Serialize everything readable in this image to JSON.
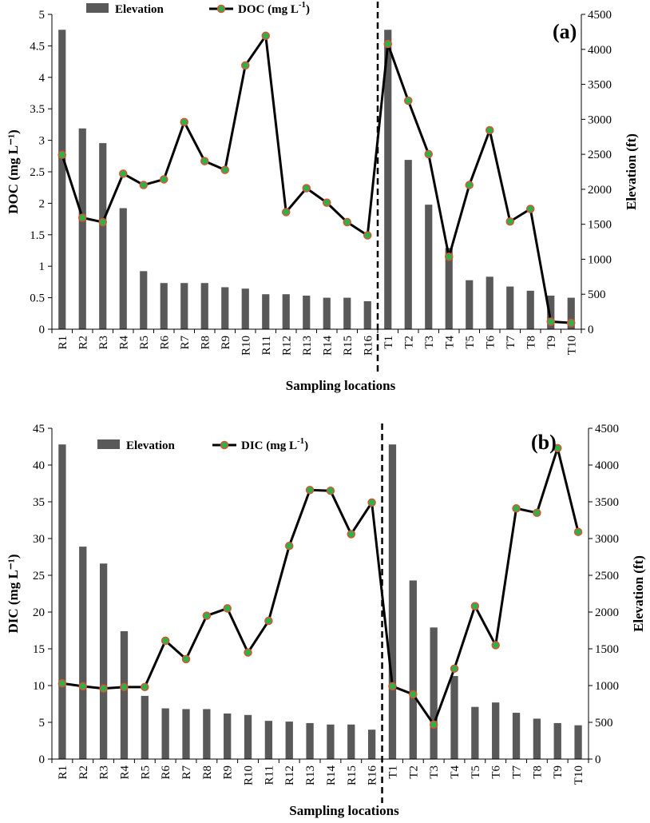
{
  "colors": {
    "bar": "#595959",
    "line": "#000000",
    "marker_fill": "#2bb24c",
    "marker_edge": "#d9542e",
    "divider": "#000000"
  },
  "chart_data": [
    {
      "type": "bar+line",
      "panel_label": "(a)",
      "categories": [
        "R1",
        "R2",
        "R3",
        "R4",
        "R5",
        "R6",
        "R7",
        "R8",
        "R9",
        "R10",
        "R11",
        "R12",
        "R13",
        "R14",
        "R15",
        "R16",
        "T1",
        "T2",
        "T3",
        "T4",
        "T5",
        "T6",
        "T7",
        "T8",
        "T9",
        "T10"
      ],
      "series": [
        {
          "name": "Elevation",
          "type": "bar",
          "axis": "right",
          "values": [
            4280,
            2870,
            2660,
            1730,
            830,
            660,
            660,
            660,
            600,
            580,
            500,
            500,
            480,
            450,
            450,
            400,
            4280,
            2420,
            1780,
            1160,
            700,
            750,
            610,
            550,
            480,
            450
          ]
        },
        {
          "name": "DOC (mg L⁻¹)",
          "type": "line",
          "axis": "left",
          "values": [
            2.77,
            1.77,
            1.7,
            2.47,
            2.29,
            2.38,
            3.29,
            2.67,
            2.53,
            4.19,
            4.66,
            1.86,
            2.24,
            2.01,
            1.7,
            1.49,
            4.53,
            3.63,
            2.78,
            1.15,
            2.29,
            3.16,
            1.71,
            1.91,
            0.12,
            0.1
          ]
        }
      ],
      "xlabel": "Sampling locations",
      "ylabel": "DOC (mg L⁻¹)",
      "y2label": "Elevation (ft)",
      "ylim": [
        0,
        5
      ],
      "yticks": [
        "0",
        "0.5",
        "1",
        "1.5",
        "2",
        "2.5",
        "3",
        "3.5",
        "4",
        "4.5",
        "5"
      ],
      "y2lim": [
        0,
        4500
      ],
      "y2ticks": [
        "0",
        "500",
        "1000",
        "1500",
        "2000",
        "2500",
        "3000",
        "3500",
        "4000",
        "4500"
      ],
      "legend": {
        "bar_label": "Elevation",
        "line_label": "DOC (mg L",
        "line_exp": "-1",
        "line_close": ")"
      },
      "divider_after": "R16"
    },
    {
      "type": "bar+line",
      "panel_label": "(b)",
      "categories": [
        "R1",
        "R2",
        "R3",
        "R4",
        "R5",
        "R6",
        "R7",
        "R8",
        "R9",
        "R10",
        "R11",
        "R12",
        "R13",
        "R14",
        "R15",
        "R16",
        "T1",
        "T2",
        "T3",
        "T4",
        "T5",
        "T6",
        "T7",
        "T8",
        "T9",
        "T10"
      ],
      "series": [
        {
          "name": "Elevation",
          "type": "bar",
          "axis": "right",
          "values": [
            4280,
            2890,
            2660,
            1740,
            860,
            690,
            680,
            680,
            620,
            600,
            520,
            510,
            490,
            470,
            470,
            400,
            4280,
            2430,
            1790,
            1130,
            710,
            770,
            630,
            550,
            490,
            460
          ]
        },
        {
          "name": "DIC (mg L⁻¹)",
          "type": "line",
          "axis": "left",
          "values": [
            10.3,
            9.9,
            9.6,
            9.8,
            9.8,
            16.1,
            13.6,
            19.5,
            20.5,
            14.5,
            18.8,
            29.0,
            36.6,
            36.5,
            30.6,
            34.9,
            9.9,
            8.8,
            4.7,
            12.3,
            20.8,
            15.5,
            34.1,
            33.5,
            42.3,
            30.9
          ]
        }
      ],
      "xlabel": "Sampling locations",
      "ylabel": "DIC (mg L⁻¹)",
      "y2label": "Elevation (ft)",
      "ylim": [
        0,
        45
      ],
      "yticks": [
        "0",
        "5",
        "10",
        "15",
        "20",
        "25",
        "30",
        "35",
        "40",
        "45"
      ],
      "y2lim": [
        0,
        4500
      ],
      "y2ticks": [
        "0",
        "500",
        "1000",
        "1500",
        "2000",
        "2500",
        "3000",
        "3500",
        "4000",
        "4500"
      ],
      "legend": {
        "bar_label": "Elevation",
        "line_label": "DIC (mg L",
        "line_exp": "-1",
        "line_close": ")"
      },
      "divider_after": "R16"
    }
  ]
}
